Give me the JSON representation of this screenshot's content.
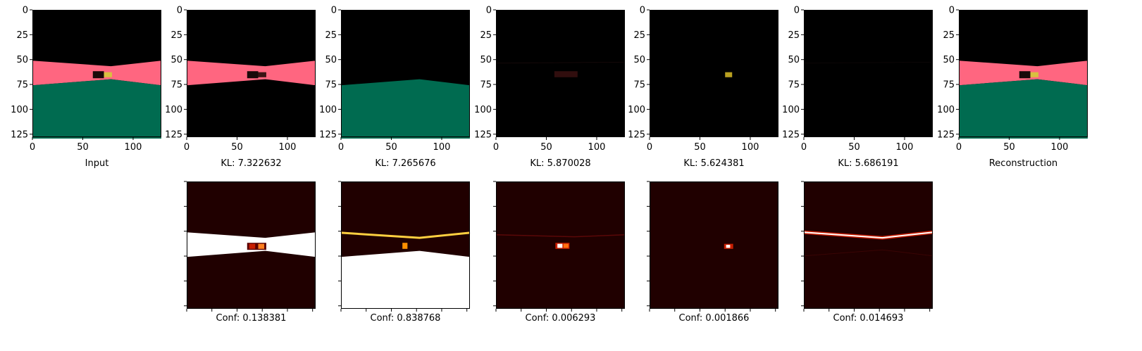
{
  "figure": {
    "background": "#ffffff",
    "colors": {
      "black": "#000000",
      "road_pink": "#ff6680",
      "ground_green": "#006b50",
      "car_yellow": "#d8c040",
      "heat_white": "#ffffff",
      "heat_yellow": "#ffd040",
      "heat_red": "#c81e00",
      "heat_dark": "#200000"
    }
  },
  "chart_data": [
    {
      "type": "heatmap",
      "panel": "input",
      "caption": "Input",
      "colormap": "rgb",
      "xlim": [
        0,
        128
      ],
      "ylim": [
        128,
        0
      ],
      "xticks": [
        0,
        50,
        100
      ],
      "yticks": [
        0,
        25,
        50,
        75,
        100,
        125
      ],
      "tick_labels": true
    },
    {
      "type": "heatmap",
      "panel": "component-1",
      "caption": "KL: 7.322632",
      "kl": 7.322632,
      "colormap": "rgb",
      "xlim": [
        0,
        128
      ],
      "ylim": [
        128,
        0
      ],
      "xticks": [
        0,
        50,
        100
      ],
      "yticks": [
        0,
        25,
        50,
        75,
        100,
        125
      ],
      "tick_labels": true
    },
    {
      "type": "heatmap",
      "panel": "component-2",
      "caption": "KL: 7.265676",
      "kl": 7.265676,
      "colormap": "rgb",
      "xlim": [
        0,
        128
      ],
      "ylim": [
        128,
        0
      ],
      "xticks": [
        0,
        50,
        100
      ],
      "yticks": [
        0,
        25,
        50,
        75,
        100,
        125
      ],
      "tick_labels": true
    },
    {
      "type": "heatmap",
      "panel": "component-3",
      "caption": "KL: 5.870028",
      "kl": 5.870028,
      "colormap": "rgb",
      "xlim": [
        0,
        128
      ],
      "ylim": [
        128,
        0
      ],
      "xticks": [
        0,
        50,
        100
      ],
      "yticks": [
        0,
        25,
        50,
        75,
        100,
        125
      ],
      "tick_labels": true
    },
    {
      "type": "heatmap",
      "panel": "component-4",
      "caption": "KL: 5.624381",
      "kl": 5.624381,
      "colormap": "rgb",
      "xlim": [
        0,
        128
      ],
      "ylim": [
        128,
        0
      ],
      "xticks": [
        0,
        50,
        100
      ],
      "yticks": [
        0,
        25,
        50,
        75,
        100,
        125
      ],
      "tick_labels": true
    },
    {
      "type": "heatmap",
      "panel": "component-5",
      "caption": "KL: 5.686191",
      "kl": 5.686191,
      "colormap": "rgb",
      "xlim": [
        0,
        128
      ],
      "ylim": [
        128,
        0
      ],
      "xticks": [
        0,
        50,
        100
      ],
      "yticks": [
        0,
        25,
        50,
        75,
        100,
        125
      ],
      "tick_labels": true
    },
    {
      "type": "heatmap",
      "panel": "reconstruction",
      "caption": "Reconstruction",
      "colormap": "rgb",
      "xlim": [
        0,
        128
      ],
      "ylim": [
        128,
        0
      ],
      "xticks": [
        0,
        50,
        100
      ],
      "yticks": [
        0,
        25,
        50,
        75,
        100,
        125
      ],
      "tick_labels": true
    },
    {
      "type": "heatmap",
      "panel": "mask-1",
      "caption": "Conf: 0.138381",
      "conf": 0.138381,
      "colormap": "hot",
      "tick_labels": false
    },
    {
      "type": "heatmap",
      "panel": "mask-2",
      "caption": "Conf: 0.838768",
      "conf": 0.838768,
      "colormap": "hot",
      "tick_labels": false
    },
    {
      "type": "heatmap",
      "panel": "mask-3",
      "caption": "Conf: 0.006293",
      "conf": 0.006293,
      "colormap": "hot",
      "tick_labels": false
    },
    {
      "type": "heatmap",
      "panel": "mask-4",
      "caption": "Conf: 0.001866",
      "conf": 0.001866,
      "colormap": "hot",
      "tick_labels": false
    },
    {
      "type": "heatmap",
      "panel": "mask-5",
      "caption": "Conf: 0.014693",
      "conf": 0.014693,
      "colormap": "hot",
      "tick_labels": false
    }
  ]
}
